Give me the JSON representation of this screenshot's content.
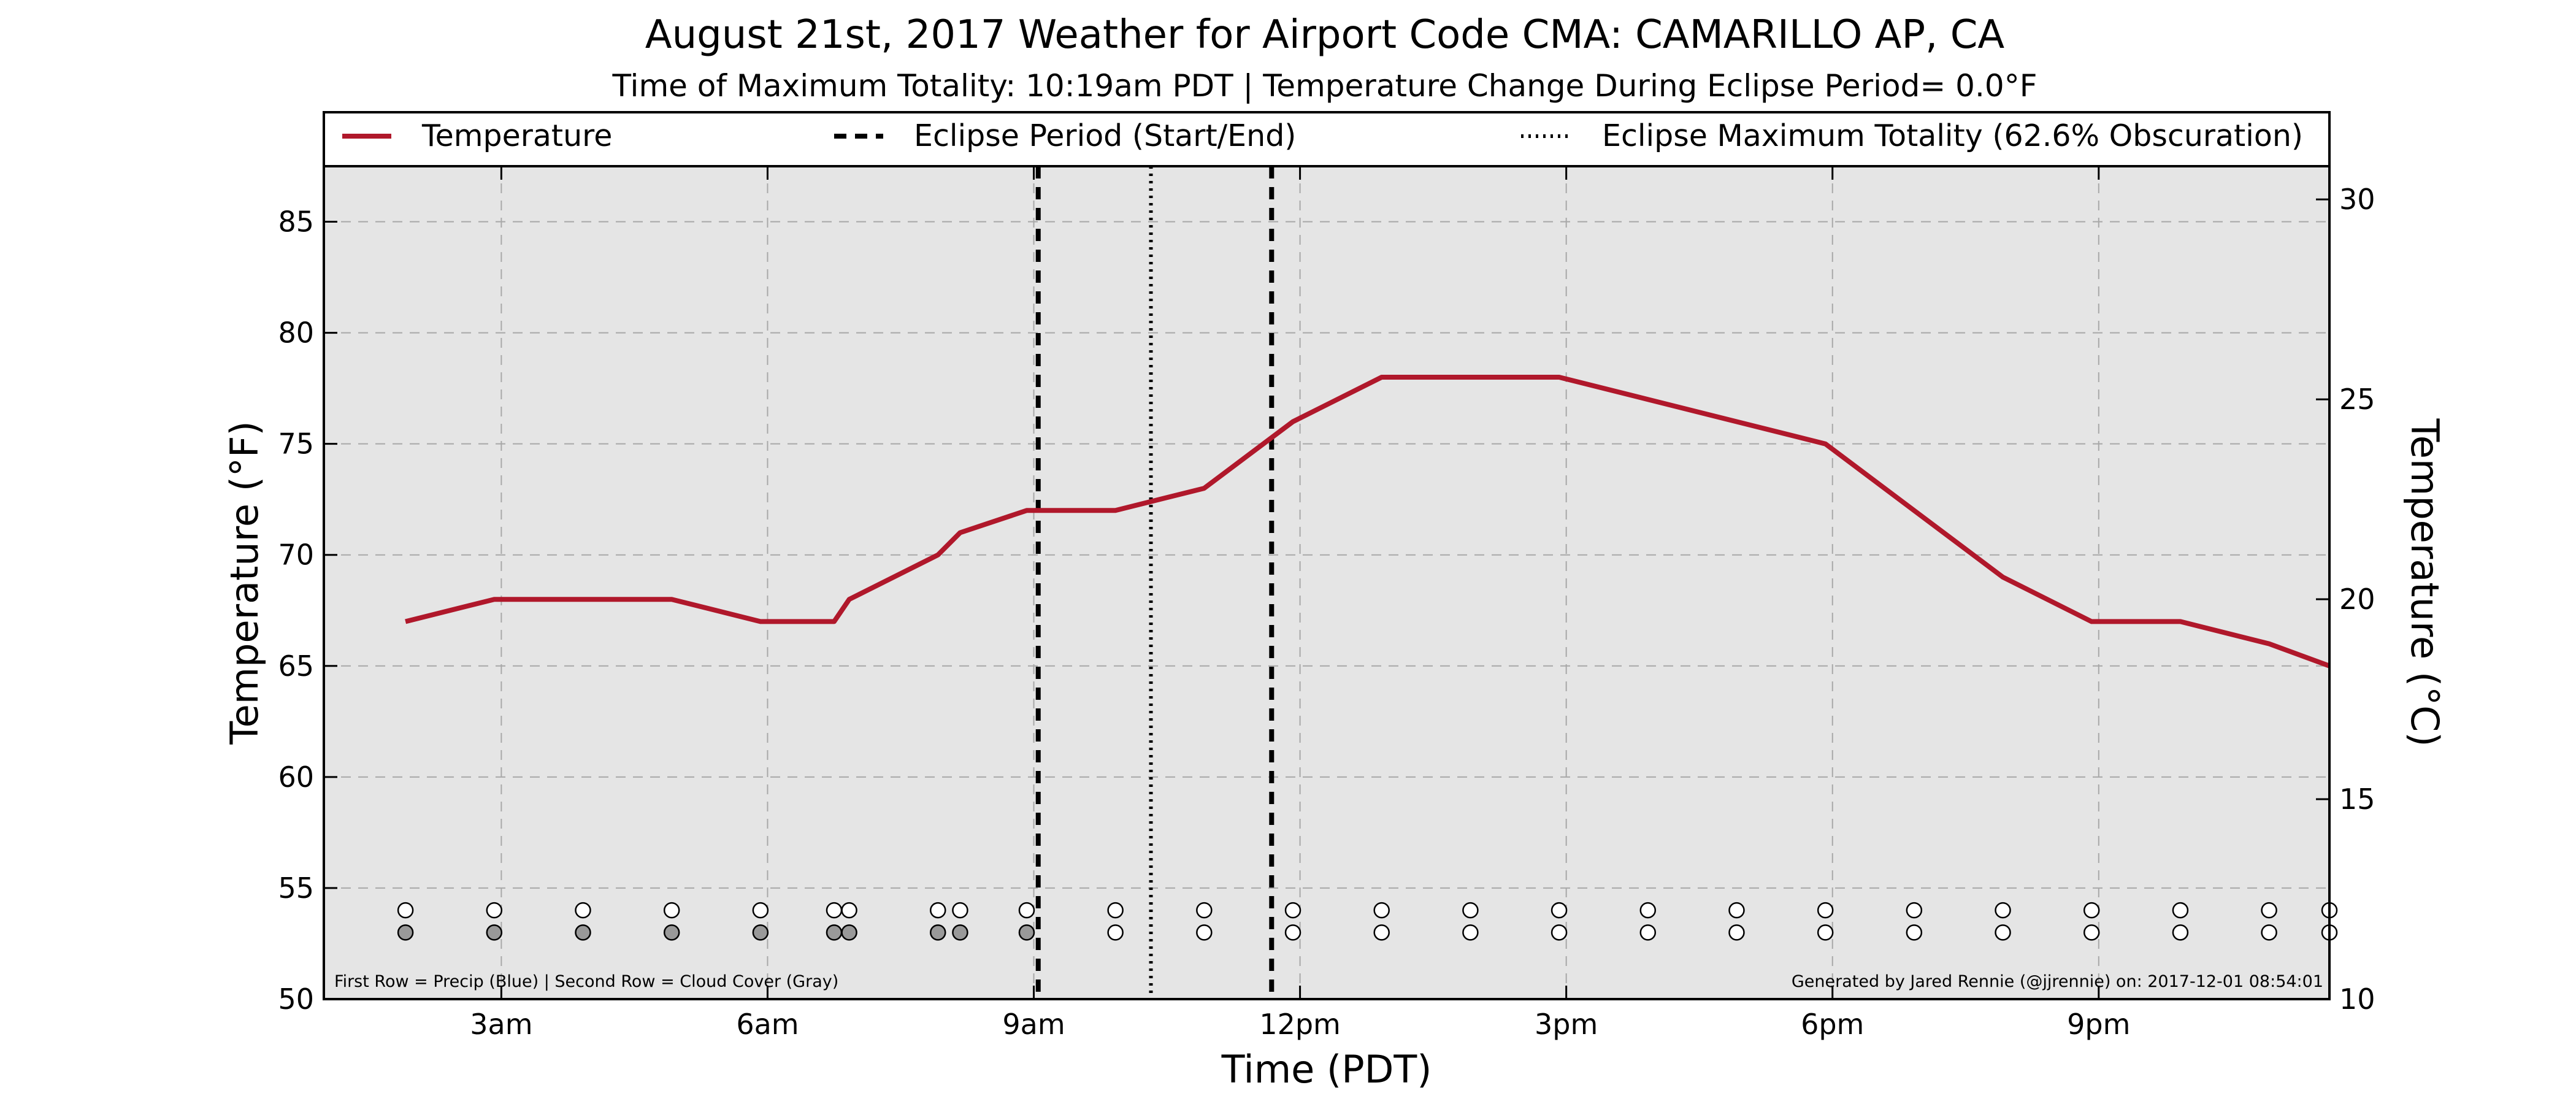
{
  "chart_data": {
    "type": "line",
    "title": "August 21st, 2017 Weather for Airport Code CMA: CAMARILLO AP, CA",
    "subtitle": "Time of Maximum Totality: 10:19am PDT | Temperature Change During Eclipse Period= 0.0°F",
    "xlabel": "Time (PDT)",
    "ylabel": "Temperature (°F)",
    "ylabel_right": "Temperature (°C)",
    "xlim": [
      1.0,
      23.6
    ],
    "ylim": [
      50,
      87.5
    ],
    "ylim_right": [
      10,
      30.83
    ],
    "grid": true,
    "legend_placement": "top, above plot",
    "x_ticks": [
      {
        "value": 3,
        "label": "3am"
      },
      {
        "value": 6,
        "label": "6am"
      },
      {
        "value": 9,
        "label": "9am"
      },
      {
        "value": 12,
        "label": "12pm"
      },
      {
        "value": 15,
        "label": "3pm"
      },
      {
        "value": 18,
        "label": "6pm"
      },
      {
        "value": 21,
        "label": "9pm"
      }
    ],
    "y_ticks": [
      {
        "value": 50,
        "label": "50"
      },
      {
        "value": 55,
        "label": "55"
      },
      {
        "value": 60,
        "label": "60"
      },
      {
        "value": 65,
        "label": "65"
      },
      {
        "value": 70,
        "label": "70"
      },
      {
        "value": 75,
        "label": "75"
      },
      {
        "value": 80,
        "label": "80"
      },
      {
        "value": 85,
        "label": "85"
      }
    ],
    "y_ticks_right": [
      {
        "value": 10,
        "label": "10"
      },
      {
        "value": 15,
        "label": "15"
      },
      {
        "value": 20,
        "label": "20"
      },
      {
        "value": 25,
        "label": "25"
      },
      {
        "value": 30,
        "label": "30"
      }
    ],
    "series": [
      {
        "name": "Temperature",
        "color": "#b0182b",
        "x": [
          1.92,
          2.92,
          3.92,
          4.92,
          5.92,
          6.75,
          6.92,
          7.92,
          8.17,
          8.92,
          9.92,
          10.92,
          11.92,
          12.92,
          13.92,
          14.92,
          15.92,
          16.92,
          17.92,
          18.92,
          19.92,
          20.92,
          21.92,
          22.92,
          23.6
        ],
        "y": [
          67,
          68,
          68,
          68,
          67,
          67,
          68,
          70,
          71,
          72,
          72,
          73,
          76,
          78,
          78,
          78,
          77,
          76,
          75,
          72,
          69,
          67,
          67,
          66,
          65
        ]
      }
    ],
    "eclipse": {
      "start": 9.05,
      "end": 11.68,
      "max": 10.32,
      "labels": [
        "Eclipse Period (Start/End)",
        "Eclipse Maximum Totality (62.6% Obscuration)"
      ]
    },
    "observations": {
      "precip_row_y": 54,
      "cloud_row_y": 53,
      "precip_color": "#ffffff",
      "cloud_clear_color": "#ffffff",
      "cloud_cover_color": "#999999",
      "precip": [
        {
          "x": 1.92,
          "v": 0
        },
        {
          "x": 2.92,
          "v": 0
        },
        {
          "x": 3.92,
          "v": 0
        },
        {
          "x": 4.92,
          "v": 0
        },
        {
          "x": 5.92,
          "v": 0
        },
        {
          "x": 6.75,
          "v": 0
        },
        {
          "x": 6.92,
          "v": 0
        },
        {
          "x": 7.92,
          "v": 0
        },
        {
          "x": 8.17,
          "v": 0
        },
        {
          "x": 8.92,
          "v": 0
        },
        {
          "x": 9.92,
          "v": 0
        },
        {
          "x": 10.92,
          "v": 0
        },
        {
          "x": 11.92,
          "v": 0
        },
        {
          "x": 12.92,
          "v": 0
        },
        {
          "x": 13.92,
          "v": 0
        },
        {
          "x": 14.92,
          "v": 0
        },
        {
          "x": 15.92,
          "v": 0
        },
        {
          "x": 16.92,
          "v": 0
        },
        {
          "x": 17.92,
          "v": 0
        },
        {
          "x": 18.92,
          "v": 0
        },
        {
          "x": 19.92,
          "v": 0
        },
        {
          "x": 20.92,
          "v": 0
        },
        {
          "x": 21.92,
          "v": 0
        },
        {
          "x": 22.92,
          "v": 0
        },
        {
          "x": 23.6,
          "v": 0
        }
      ],
      "cloud": [
        {
          "x": 1.92,
          "v": 1
        },
        {
          "x": 2.92,
          "v": 1
        },
        {
          "x": 3.92,
          "v": 1
        },
        {
          "x": 4.92,
          "v": 1
        },
        {
          "x": 5.92,
          "v": 1
        },
        {
          "x": 6.75,
          "v": 1
        },
        {
          "x": 6.92,
          "v": 1
        },
        {
          "x": 7.92,
          "v": 1
        },
        {
          "x": 8.17,
          "v": 1
        },
        {
          "x": 8.92,
          "v": 1
        },
        {
          "x": 9.92,
          "v": 0
        },
        {
          "x": 10.92,
          "v": 0
        },
        {
          "x": 11.92,
          "v": 0
        },
        {
          "x": 12.92,
          "v": 0
        },
        {
          "x": 13.92,
          "v": 0
        },
        {
          "x": 14.92,
          "v": 0
        },
        {
          "x": 15.92,
          "v": 0
        },
        {
          "x": 16.92,
          "v": 0
        },
        {
          "x": 17.92,
          "v": 0
        },
        {
          "x": 18.92,
          "v": 0
        },
        {
          "x": 19.92,
          "v": 0
        },
        {
          "x": 20.92,
          "v": 0
        },
        {
          "x": 21.92,
          "v": 0
        },
        {
          "x": 22.92,
          "v": 0
        },
        {
          "x": 23.6,
          "v": 0
        }
      ]
    },
    "annotations": {
      "left": "First Row = Precip (Blue) | Second Row = Cloud Cover (Gray)",
      "right": "Generated by Jared Rennie (@jjrennie) on: 2017-12-01 08:54:01"
    },
    "colors": {
      "plot_background": "#e5e5e5",
      "grid": "#a8a8a8",
      "line": "#b0182b"
    }
  }
}
